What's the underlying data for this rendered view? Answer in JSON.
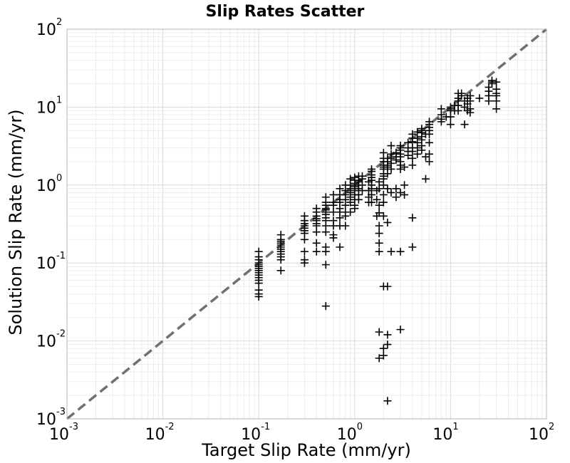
{
  "chart_data": {
    "type": "scatter",
    "title": "Slip Rates Scatter",
    "xlabel": "Target Slip Rate (mm/yr)",
    "ylabel": "Solution Slip Rate (mm/yr)",
    "xscale": "log",
    "yscale": "log",
    "xlim": [
      0.001,
      100
    ],
    "ylim": [
      0.001,
      100
    ],
    "grid": true,
    "x_ticks": [
      {
        "base": "10",
        "exp": "-3",
        "value": 0.001
      },
      {
        "base": "10",
        "exp": "-2",
        "value": 0.01
      },
      {
        "base": "10",
        "exp": "-1",
        "value": 0.1
      },
      {
        "base": "10",
        "exp": "0",
        "value": 1
      },
      {
        "base": "10",
        "exp": "1",
        "value": 10
      },
      {
        "base": "10",
        "exp": "2",
        "value": 100
      }
    ],
    "y_ticks": [
      {
        "base": "10",
        "exp": "-3",
        "value": 0.001
      },
      {
        "base": "10",
        "exp": "-2",
        "value": 0.01
      },
      {
        "base": "10",
        "exp": "-1",
        "value": 0.1
      },
      {
        "base": "10",
        "exp": "0",
        "value": 1
      },
      {
        "base": "10",
        "exp": "1",
        "value": 10
      },
      {
        "base": "10",
        "exp": "2",
        "value": 100
      }
    ],
    "reference_line": {
      "style": "dashed",
      "color": "#707070",
      "from": [
        0.001,
        0.001
      ],
      "to": [
        100,
        100
      ]
    },
    "marker": "+",
    "marker_color": "#000000",
    "points": [
      [
        0.1,
        0.14
      ],
      [
        0.1,
        0.12
      ],
      [
        0.1,
        0.11
      ],
      [
        0.1,
        0.1
      ],
      [
        0.1,
        0.095
      ],
      [
        0.1,
        0.09
      ],
      [
        0.1,
        0.085
      ],
      [
        0.1,
        0.08
      ],
      [
        0.1,
        0.075
      ],
      [
        0.1,
        0.07
      ],
      [
        0.1,
        0.065
      ],
      [
        0.1,
        0.06
      ],
      [
        0.1,
        0.055
      ],
      [
        0.1,
        0.045
      ],
      [
        0.1,
        0.04
      ],
      [
        0.1,
        0.037
      ],
      [
        0.17,
        0.23
      ],
      [
        0.17,
        0.2
      ],
      [
        0.17,
        0.19
      ],
      [
        0.17,
        0.18
      ],
      [
        0.17,
        0.17
      ],
      [
        0.17,
        0.16
      ],
      [
        0.17,
        0.15
      ],
      [
        0.17,
        0.14
      ],
      [
        0.17,
        0.13
      ],
      [
        0.17,
        0.12
      ],
      [
        0.17,
        0.11
      ],
      [
        0.17,
        0.08
      ],
      [
        0.3,
        0.4
      ],
      [
        0.3,
        0.35
      ],
      [
        0.3,
        0.32
      ],
      [
        0.3,
        0.3
      ],
      [
        0.3,
        0.28
      ],
      [
        0.3,
        0.26
      ],
      [
        0.3,
        0.24
      ],
      [
        0.3,
        0.2
      ],
      [
        0.3,
        0.14
      ],
      [
        0.3,
        0.11
      ],
      [
        0.3,
        0.1
      ],
      [
        0.4,
        0.5
      ],
      [
        0.4,
        0.45
      ],
      [
        0.4,
        0.4
      ],
      [
        0.4,
        0.37
      ],
      [
        0.4,
        0.35
      ],
      [
        0.4,
        0.32
      ],
      [
        0.4,
        0.3
      ],
      [
        0.4,
        0.25
      ],
      [
        0.4,
        0.18
      ],
      [
        0.4,
        0.14
      ],
      [
        0.5,
        0.7
      ],
      [
        0.5,
        0.6
      ],
      [
        0.5,
        0.55
      ],
      [
        0.5,
        0.5
      ],
      [
        0.5,
        0.48
      ],
      [
        0.5,
        0.45
      ],
      [
        0.5,
        0.42
      ],
      [
        0.5,
        0.38
      ],
      [
        0.5,
        0.35
      ],
      [
        0.5,
        0.3
      ],
      [
        0.5,
        0.25
      ],
      [
        0.5,
        0.16
      ],
      [
        0.5,
        0.14
      ],
      [
        0.5,
        0.095
      ],
      [
        0.5,
        0.028
      ],
      [
        0.6,
        0.75
      ],
      [
        0.6,
        0.6
      ],
      [
        0.6,
        0.55
      ],
      [
        0.6,
        0.45
      ],
      [
        0.6,
        0.35
      ],
      [
        0.6,
        0.3
      ],
      [
        0.6,
        0.23
      ],
      [
        0.6,
        0.21
      ],
      [
        0.7,
        0.9
      ],
      [
        0.7,
        0.75
      ],
      [
        0.7,
        0.65
      ],
      [
        0.7,
        0.6
      ],
      [
        0.7,
        0.5
      ],
      [
        0.7,
        0.45
      ],
      [
        0.7,
        0.38
      ],
      [
        0.7,
        0.3
      ],
      [
        0.7,
        0.16
      ],
      [
        0.8,
        1.0
      ],
      [
        0.8,
        0.85
      ],
      [
        0.8,
        0.75
      ],
      [
        0.8,
        0.65
      ],
      [
        0.8,
        0.55
      ],
      [
        0.8,
        0.45
      ],
      [
        0.8,
        0.4
      ],
      [
        0.8,
        0.3
      ],
      [
        0.9,
        1.2
      ],
      [
        0.9,
        1.0
      ],
      [
        0.9,
        0.9
      ],
      [
        0.9,
        0.8
      ],
      [
        0.9,
        0.7
      ],
      [
        0.9,
        0.6
      ],
      [
        0.9,
        0.45
      ],
      [
        1.0,
        1.25
      ],
      [
        1.0,
        1.15
      ],
      [
        1.0,
        1.05
      ],
      [
        1.0,
        1.0
      ],
      [
        1.0,
        0.95
      ],
      [
        1.0,
        0.9
      ],
      [
        1.0,
        0.85
      ],
      [
        1.0,
        0.75
      ],
      [
        1.0,
        0.65
      ],
      [
        1.0,
        0.55
      ],
      [
        1.0,
        0.5
      ],
      [
        1.1,
        1.3
      ],
      [
        1.1,
        1.15
      ],
      [
        1.1,
        1.1
      ],
      [
        1.1,
        1.0
      ],
      [
        1.1,
        0.9
      ],
      [
        1.1,
        0.75
      ],
      [
        1.1,
        0.65
      ],
      [
        1.2,
        1.3
      ],
      [
        1.2,
        1.2
      ],
      [
        1.2,
        1.0
      ],
      [
        1.2,
        0.85
      ],
      [
        1.4,
        1.1
      ],
      [
        1.4,
        0.85
      ],
      [
        1.4,
        0.7
      ],
      [
        1.4,
        0.6
      ],
      [
        1.5,
        1.6
      ],
      [
        1.5,
        1.5
      ],
      [
        1.5,
        1.35
      ],
      [
        1.5,
        1.25
      ],
      [
        1.5,
        1.15
      ],
      [
        1.5,
        1.0
      ],
      [
        1.5,
        0.9
      ],
      [
        1.5,
        0.75
      ],
      [
        1.5,
        0.6
      ],
      [
        1.7,
        0.85
      ],
      [
        1.7,
        0.65
      ],
      [
        1.7,
        0.4
      ],
      [
        1.8,
        1.1
      ],
      [
        1.8,
        0.9
      ],
      [
        1.8,
        0.55
      ],
      [
        1.8,
        0.44
      ],
      [
        1.8,
        0.3
      ],
      [
        1.8,
        0.24
      ],
      [
        1.8,
        0.18
      ],
      [
        1.8,
        0.14
      ],
      [
        1.8,
        0.013
      ],
      [
        1.8,
        0.006
      ],
      [
        2.0,
        2.6
      ],
      [
        2.0,
        2.2
      ],
      [
        2.0,
        2.0
      ],
      [
        2.0,
        1.8
      ],
      [
        2.0,
        1.7
      ],
      [
        2.0,
        1.6
      ],
      [
        2.0,
        1.4
      ],
      [
        2.0,
        1.3
      ],
      [
        2.0,
        1.2
      ],
      [
        2.0,
        1.0
      ],
      [
        2.0,
        0.75
      ],
      [
        2.0,
        0.6
      ],
      [
        2.0,
        0.4
      ],
      [
        2.0,
        0.05
      ],
      [
        2.0,
        0.008
      ],
      [
        2.0,
        0.0065
      ],
      [
        2.2,
        2.2
      ],
      [
        2.2,
        2.0
      ],
      [
        2.2,
        1.8
      ],
      [
        2.2,
        1.7
      ],
      [
        2.2,
        1.4
      ],
      [
        2.2,
        0.9
      ],
      [
        2.2,
        0.33
      ],
      [
        2.2,
        0.0017
      ],
      [
        2.2,
        0.05
      ],
      [
        2.2,
        0.009
      ],
      [
        2.2,
        0.012
      ],
      [
        2.4,
        3.2
      ],
      [
        2.4,
        2.5
      ],
      [
        2.4,
        2.2
      ],
      [
        2.4,
        1.9
      ],
      [
        2.4,
        1.6
      ],
      [
        2.4,
        0.8
      ],
      [
        2.4,
        0.14
      ],
      [
        2.7,
        2.6
      ],
      [
        2.7,
        2.3
      ],
      [
        2.7,
        2.1
      ],
      [
        2.7,
        0.9
      ],
      [
        2.7,
        0.7
      ],
      [
        3.0,
        3.2
      ],
      [
        3.0,
        3.0
      ],
      [
        3.0,
        2.8
      ],
      [
        3.0,
        2.5
      ],
      [
        3.0,
        2.3
      ],
      [
        3.0,
        2.0
      ],
      [
        3.0,
        1.8
      ],
      [
        3.0,
        1.6
      ],
      [
        3.0,
        0.8
      ],
      [
        3.0,
        0.14
      ],
      [
        3.0,
        0.014
      ],
      [
        3.3,
        1.7
      ],
      [
        3.3,
        1.0
      ],
      [
        3.3,
        0.75
      ],
      [
        3.6,
        3.5
      ],
      [
        3.6,
        3.0
      ],
      [
        3.6,
        2.7
      ],
      [
        3.6,
        2.4
      ],
      [
        4.0,
        4.5
      ],
      [
        4.0,
        4.0
      ],
      [
        4.0,
        3.6
      ],
      [
        4.0,
        3.0
      ],
      [
        4.0,
        2.7
      ],
      [
        4.0,
        2.2
      ],
      [
        4.0,
        1.8
      ],
      [
        4.0,
        0.38
      ],
      [
        4.0,
        0.16
      ],
      [
        4.5,
        4.8
      ],
      [
        4.5,
        4.0
      ],
      [
        4.5,
        3.5
      ],
      [
        4.5,
        3.0
      ],
      [
        4.5,
        2.5
      ],
      [
        5.0,
        5.3
      ],
      [
        5.0,
        5.0
      ],
      [
        5.0,
        4.7
      ],
      [
        5.0,
        4.2
      ],
      [
        5.0,
        3.8
      ],
      [
        5.0,
        3.2
      ],
      [
        5.0,
        2.8
      ],
      [
        5.5,
        1.2
      ],
      [
        5.5,
        2.3
      ],
      [
        5.5,
        4.5
      ],
      [
        6.0,
        6.5
      ],
      [
        6.0,
        6.0
      ],
      [
        6.0,
        5.5
      ],
      [
        6.0,
        5.0
      ],
      [
        6.0,
        4.5
      ],
      [
        6.0,
        3.5
      ],
      [
        6.0,
        2.5
      ],
      [
        6.0,
        2.0
      ],
      [
        8.0,
        9.5
      ],
      [
        8.0,
        8.0
      ],
      [
        8.0,
        7.0
      ],
      [
        8.0,
        6.5
      ],
      [
        9.0,
        7.5
      ],
      [
        10.0,
        10.0
      ],
      [
        10.0,
        9.5
      ],
      [
        10.0,
        9.0
      ],
      [
        10.0,
        7.5
      ],
      [
        10.0,
        6.0
      ],
      [
        11.0,
        10.5
      ],
      [
        11.0,
        9.0
      ],
      [
        12.0,
        15.0
      ],
      [
        12.0,
        13.0
      ],
      [
        12.0,
        12.0
      ],
      [
        12.0,
        10.5
      ],
      [
        12.0,
        9.0
      ],
      [
        13.0,
        15.0
      ],
      [
        13.0,
        14.0
      ],
      [
        14.0,
        12.0
      ],
      [
        14.0,
        10.0
      ],
      [
        14.0,
        6.0
      ],
      [
        15.0,
        13.0
      ],
      [
        15.0,
        11.0
      ],
      [
        15.0,
        9.0
      ],
      [
        16.0,
        14.0
      ],
      [
        16.0,
        12.0
      ],
      [
        16.0,
        9.5
      ],
      [
        16.0,
        8.5
      ],
      [
        20.0,
        13.0
      ],
      [
        25.0,
        18.0
      ],
      [
        25.0,
        16.0
      ],
      [
        25.0,
        14.0
      ],
      [
        25.0,
        12.0
      ],
      [
        27.0,
        22.0
      ],
      [
        27.0,
        21.0
      ],
      [
        27.0,
        20.0
      ],
      [
        30.0,
        21.0
      ],
      [
        30.0,
        17.0
      ],
      [
        30.0,
        15.0
      ],
      [
        30.0,
        14.0
      ],
      [
        30.0,
        9.5
      ],
      [
        30.0,
        12.0
      ]
    ]
  }
}
